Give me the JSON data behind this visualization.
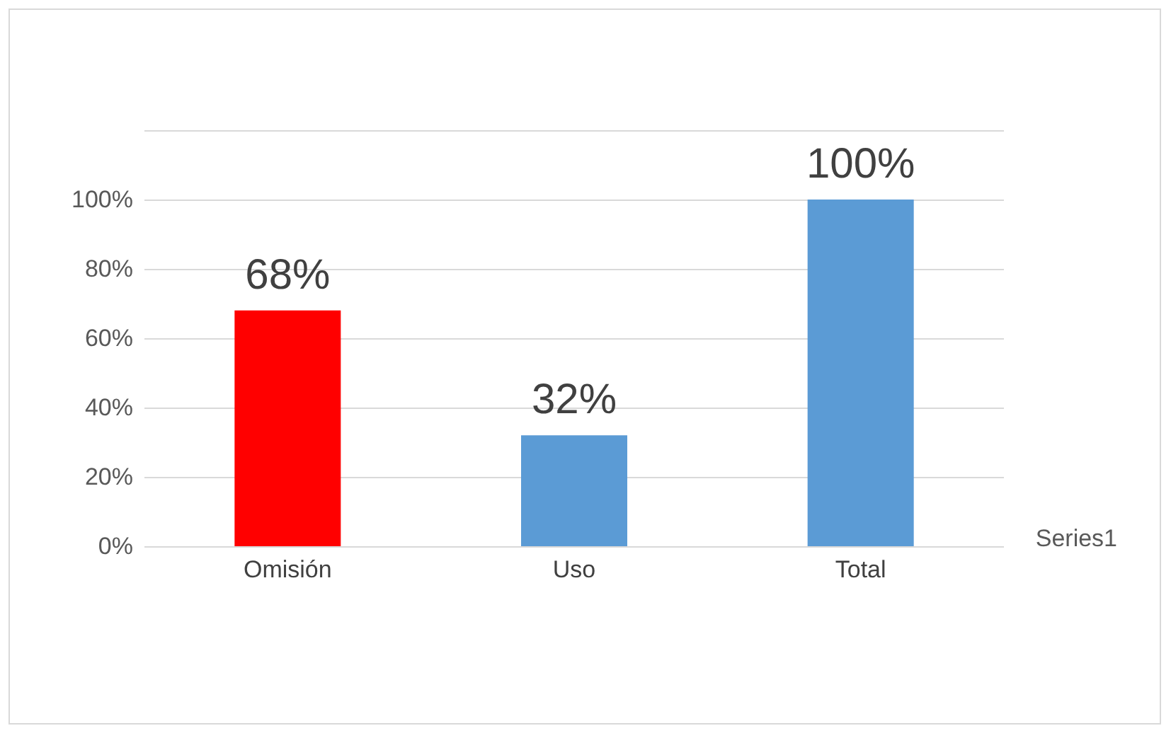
{
  "chart_data": {
    "type": "bar",
    "categories": [
      "Omisión",
      "Uso",
      "Total"
    ],
    "series": [
      {
        "name": "Series1",
        "colors": [
          "#ff0000",
          "#5b9bd5",
          "#5b9bd5"
        ],
        "values": [
          68,
          32,
          100
        ],
        "value_labels": [
          "68%",
          "32%",
          "100%"
        ]
      }
    ],
    "ylim": [
      0,
      120
    ],
    "yticks": [
      {
        "value": 0,
        "label": "0%"
      },
      {
        "value": 20,
        "label": "20%"
      },
      {
        "value": 40,
        "label": "40%"
      },
      {
        "value": 60,
        "label": "60%"
      },
      {
        "value": 80,
        "label": "80%"
      },
      {
        "value": 100,
        "label": "100%"
      },
      {
        "value": 120,
        "label": null
      }
    ],
    "grid": "y",
    "legend": "right"
  }
}
